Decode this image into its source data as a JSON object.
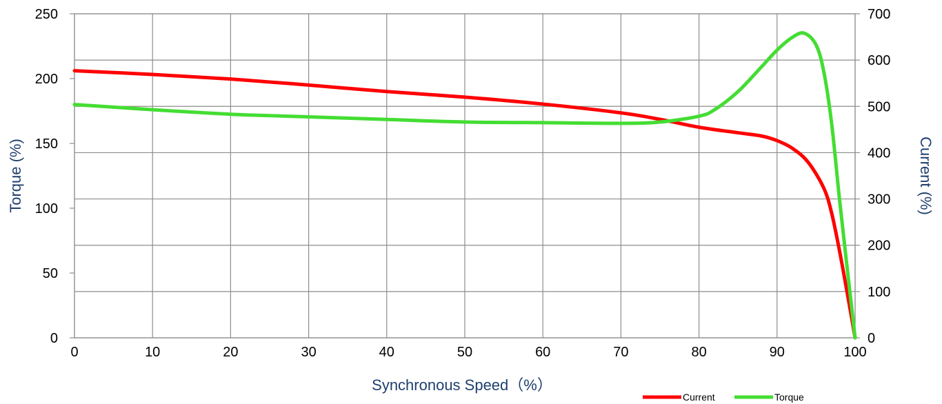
{
  "chart_data": {
    "type": "line",
    "xlabel": "Synchronous Speed（%）",
    "ylabel_left": "Torque (%)",
    "ylabel_right": "Current (%)",
    "xlim": [
      0,
      100
    ],
    "ylim_left": [
      0,
      250
    ],
    "ylim_right": [
      0,
      700
    ],
    "x_ticks": [
      0,
      10,
      20,
      30,
      40,
      50,
      60,
      70,
      80,
      90,
      100
    ],
    "y_left_ticks": [
      0,
      50,
      100,
      150,
      200,
      250
    ],
    "y_right_ticks": [
      0,
      100,
      200,
      300,
      400,
      500,
      600,
      700
    ],
    "grid": true,
    "legend_position": "bottom-right",
    "series": [
      {
        "name": "Current",
        "axis": "right",
        "color": "#ff0000",
        "x": [
          0,
          10,
          20,
          30,
          40,
          50,
          60,
          70,
          75,
          80,
          85,
          88,
          90,
          92,
          94,
          96,
          97,
          98,
          99,
          100
        ],
        "y": [
          577,
          569,
          559,
          546,
          532,
          520,
          505,
          486,
          472,
          455,
          443,
          436,
          426,
          409,
          379,
          323,
          269,
          188,
          96,
          0
        ]
      },
      {
        "name": "Torque",
        "axis": "left",
        "color": "#44dd33",
        "x": [
          0,
          10,
          20,
          30,
          40,
          50,
          60,
          70,
          75,
          80,
          82,
          85,
          88,
          90,
          92,
          93.5,
          95,
          96,
          97,
          98,
          99,
          100
        ],
        "y": [
          180,
          176,
          172.5,
          170.5,
          168.5,
          166.5,
          166,
          165.5,
          166.5,
          171,
          176,
          190,
          209,
          222,
          232,
          235,
          226,
          205,
          165,
          107,
          53,
          0
        ]
      }
    ]
  }
}
